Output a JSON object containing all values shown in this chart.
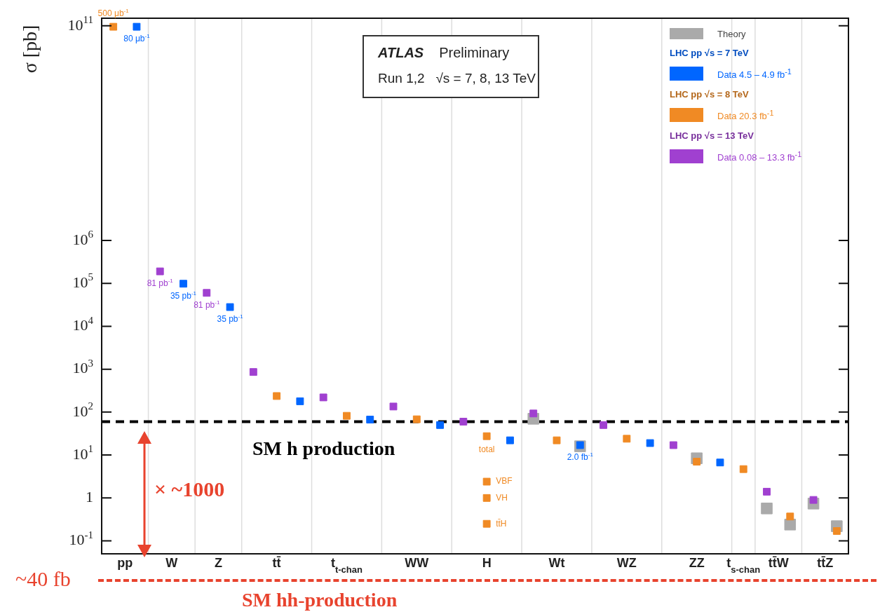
{
  "chart_data": {
    "type": "scatter",
    "ylabel": "σ [pb]",
    "categories": [
      "pp",
      "W",
      "Z",
      "tt̄",
      "t$_{t-chan}$",
      "WW",
      "H",
      "Wt",
      "WZ",
      "ZZ",
      "t$_{s-chan}$",
      "tt̄W",
      "tt̄Z"
    ],
    "log": "y",
    "grid": "x",
    "legend": "top right",
    "ylim": [
      0.05,
      150000000000.0
    ],
    "yticks": [
      {
        "value": 0.1,
        "label": "10$^{-1}$"
      },
      1,
      {
        "value": 10,
        "label": "10$^{1}$"
      },
      {
        "value": 100,
        "label": "10$^{2}$"
      },
      {
        "value": 1000,
        "label": "10$^{3}$"
      },
      {
        "value": 10000,
        "label": "10$^{4}$"
      },
      {
        "value": 100000,
        "label": "10$^{5}$"
      },
      {
        "value": 1000000,
        "label": "10$^{6}$"
      },
      {
        "value": 100000000000,
        "label": "10$^{11}$"
      }
    ],
    "series": [
      {
        "name": "Theory",
        "color": "#aaaaaa",
        "marker": "square",
        "x": [
          "Wt",
          "Wt",
          "Wt",
          "ZZ",
          "ZZ",
          "tt̄W",
          "tt̄W",
          "tt̄Z",
          "tt̄Z"
        ],
        "values": [
          70,
          null,
          16,
          null,
          8.4,
          0.57,
          0.24,
          0.74,
          0.22
        ]
      },
      {
        "name": "Data 4.5 – 4.9 fb$^{-1}$",
        "color": "#0066ff",
        "marker": "square",
        "x": [
          "pp",
          "W",
          "Z",
          "tt̄",
          "t$_{t-chan}$",
          "WW",
          "H",
          "Wt",
          "WZ",
          "ZZ"
        ],
        "values": [
          95000000000.0,
          98000,
          28000,
          179,
          67,
          50,
          22,
          17,
          19,
          6.7
        ]
      },
      {
        "name": "Data 20.3 fb$^{-1}$",
        "color": "#f08a24",
        "marker": "square",
        "x": [
          "pp",
          "tt̄",
          "t$_{t-chan}$",
          "WW",
          "H",
          "H",
          "H",
          "H",
          "Wt",
          "WZ",
          "ZZ",
          "t$_{s-chan}$",
          "tt̄W",
          "tt̄Z"
        ],
        "values": [
          95000000000.0,
          237,
          82,
          68,
          27.5,
          2.4,
          1.0,
          0.25,
          22,
          24,
          7.0,
          4.7,
          0.37,
          0.17
        ]
      },
      {
        "name": "Data 0.08 – 13.3 fb$^{-1}$",
        "color": "#a040d0",
        "marker": "square",
        "x": [
          "W",
          "Z",
          "tt̄",
          "t$_{t-chan}$",
          "WW",
          "H",
          "Wt",
          "WZ",
          "ZZ",
          "tt̄W",
          "tt̄Z"
        ],
        "values": [
          190000,
          60000,
          860,
          220,
          135,
          60,
          93,
          50,
          17,
          1.4,
          0.9
        ]
      }
    ],
    "ref_lines": [
      {
        "axis": "y",
        "value": 60,
        "label": "SM h production",
        "color": "#000000",
        "line_style": "dashed"
      }
    ],
    "annotations": [
      "ATLAS",
      "Preliminary",
      "Run 1,2   √s = 7, 8, 13 TeV",
      "LHC pp  √s = 7 TeV",
      "LHC pp  √s = 8 TeV",
      "LHC pp  √s = 13 TeV",
      "× ~1000",
      "~40 fb",
      "SM hh-production",
      "500 μb$^{-1}$",
      "80 μb$^{-1}$",
      "81 pb$^{-1}$",
      "35 pb$^{-1}$",
      "81 pb$^{-1}$",
      "35 pb$^{-1}$",
      "2.0 fb$^{-1}$",
      {
        "text": "total",
        "x": "H",
        "y": 27.5
      },
      {
        "text": "VBF",
        "x": "H",
        "y": 2.4
      },
      {
        "text": "VH",
        "x": "H",
        "y": 1.0
      },
      {
        "text": "tt̄H",
        "x": "H",
        "y": 0.25
      }
    ]
  }
}
